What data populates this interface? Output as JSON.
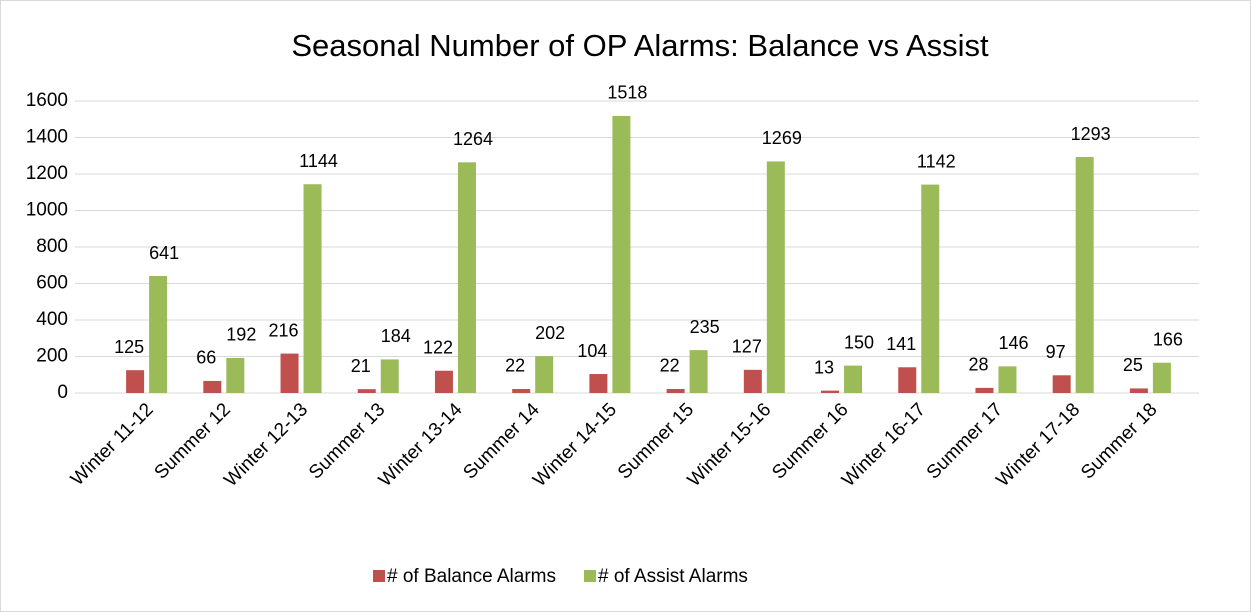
{
  "chart_data": {
    "type": "bar",
    "title": "Seasonal Number of OP Alarms: Balance vs Assist",
    "categories": [
      "Winter 11-12",
      "Summer 12",
      "Winter 12-13",
      "Summer 13",
      "Winter 13-14",
      "Summer 14",
      "Winter 14-15",
      "Summer 15",
      "Winter 15-16",
      "Summer 16",
      "Winter 16-17",
      "Summer 17",
      "Winter 17-18",
      "Summer 18"
    ],
    "series": [
      {
        "name": "# of Balance Alarms",
        "color": "#c0504d",
        "values": [
          125,
          66,
          216,
          21,
          122,
          22,
          104,
          22,
          127,
          13,
          141,
          28,
          97,
          25
        ]
      },
      {
        "name": "# of Assist Alarms",
        "color": "#9bbb59",
        "values": [
          641,
          192,
          1144,
          184,
          1264,
          202,
          1518,
          235,
          1269,
          150,
          1142,
          146,
          1293,
          166
        ]
      }
    ],
    "ylim": [
      0,
      1600
    ],
    "yticks": [
      0,
      200,
      400,
      600,
      800,
      1000,
      1200,
      1400,
      1600
    ],
    "grid": true,
    "legend": "bottom"
  }
}
